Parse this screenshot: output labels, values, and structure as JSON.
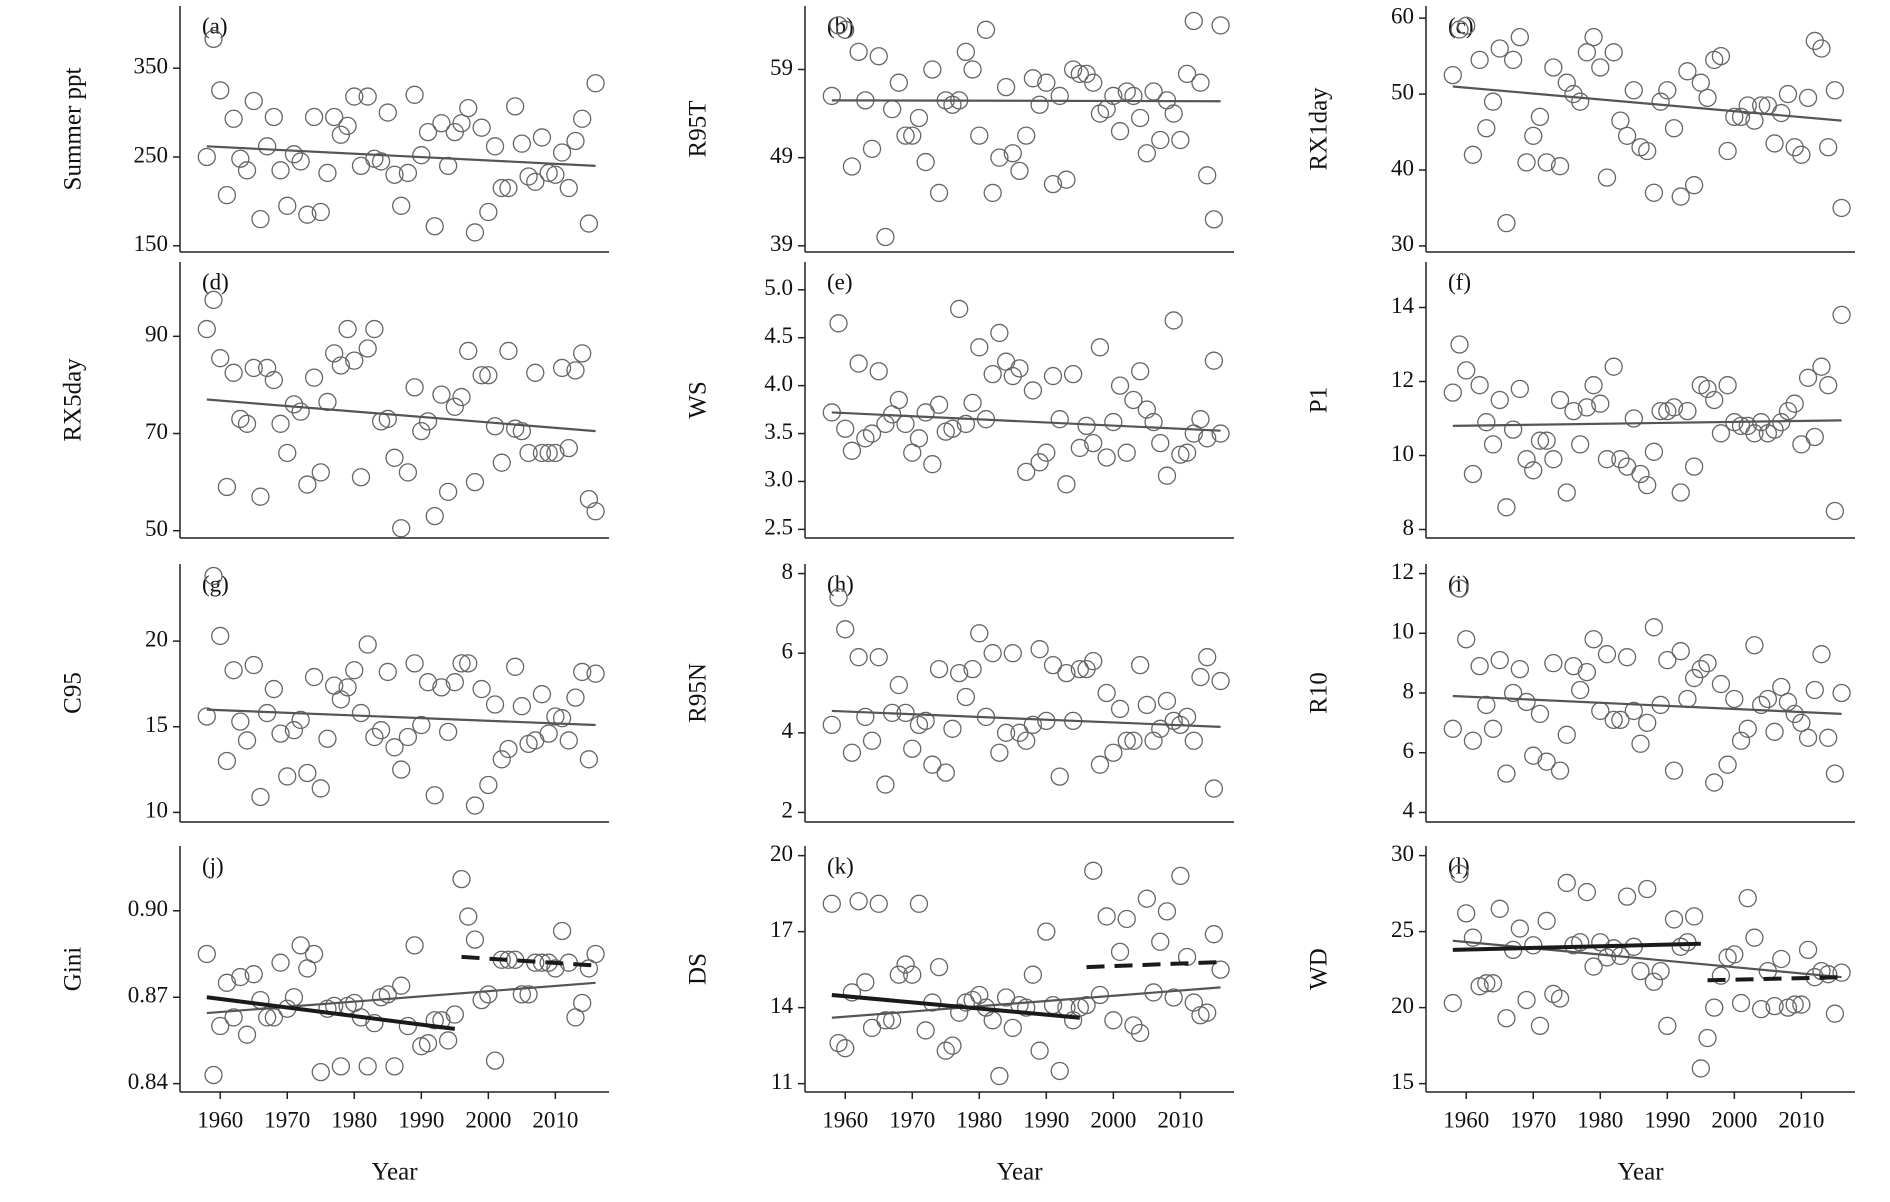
{
  "chart_data": {
    "type": "scatter",
    "xlabel": "Year",
    "x": [
      1958,
      1959,
      1960,
      1961,
      1962,
      1963,
      1964,
      1965,
      1966,
      1967,
      1968,
      1969,
      1970,
      1971,
      1972,
      1973,
      1974,
      1975,
      1976,
      1977,
      1978,
      1979,
      1980,
      1981,
      1982,
      1983,
      1984,
      1985,
      1986,
      1987,
      1988,
      1989,
      1990,
      1991,
      1992,
      1993,
      1994,
      1995,
      1996,
      1997,
      1998,
      1999,
      2000,
      2001,
      2002,
      2003,
      2004,
      2005,
      2006,
      2007,
      2008,
      2009,
      2010,
      2011,
      2012,
      2013,
      2014,
      2015,
      2016
    ],
    "xlim": [
      1954,
      2018
    ],
    "xticks": [
      1960,
      1970,
      1980,
      1990,
      2000,
      2010
    ],
    "panels": [
      {
        "label": "(a)",
        "ylabel": "Summer ppt",
        "ylim": [
          143,
          420
        ],
        "yticks": [
          150,
          250,
          350
        ],
        "values": [
          250,
          383,
          325,
          207,
          293,
          248,
          235,
          313,
          180,
          262,
          295,
          235,
          195,
          253,
          245,
          185,
          295,
          188,
          232,
          295,
          275,
          285,
          318,
          240,
          318,
          248,
          245,
          300,
          230,
          195,
          232,
          320,
          252,
          278,
          172,
          288,
          240,
          278,
          288,
          305,
          165,
          283,
          188,
          262,
          215,
          215,
          307,
          265,
          228,
          222,
          272,
          232,
          230,
          255,
          215,
          268,
          293,
          175,
          333
        ],
        "trends": [
          {
            "x": [
              1958,
              2016
            ],
            "values": [
              262,
              240
            ],
            "style": "thin"
          }
        ]
      },
      {
        "label": "(b)",
        "ylabel": "R95T",
        "ylim": [
          38.3,
          66.2
        ],
        "yticks": [
          39,
          49,
          59
        ],
        "values": [
          56,
          64,
          63.5,
          48,
          61,
          55.5,
          50,
          60.5,
          40,
          54.5,
          57.5,
          51.5,
          51.5,
          53.5,
          48.5,
          59,
          45,
          55.5,
          55,
          55.5,
          61,
          59,
          51.5,
          63.5,
          45,
          49,
          57,
          49.5,
          47.5,
          51.5,
          58,
          55,
          57.5,
          46,
          56,
          46.5,
          59,
          58.5,
          58.5,
          57.5,
          54,
          54.5,
          56,
          52,
          56.5,
          56,
          53.5,
          49.5,
          56.5,
          51,
          55.5,
          54,
          51,
          58.5,
          64.5,
          57.5,
          47,
          42,
          64
        ],
        "trends": [
          {
            "x": [
              1958,
              2016
            ],
            "values": [
              55.5,
              55.4
            ],
            "style": "thin"
          }
        ]
      },
      {
        "label": "(c)",
        "ylabel": "RX1day",
        "ylim": [
          29.2,
          61.6
        ],
        "yticks": [
          30,
          40,
          50,
          60
        ],
        "values": [
          52.5,
          58.5,
          59,
          42,
          54.5,
          45.5,
          49,
          56,
          33,
          54.5,
          57.5,
          41,
          44.5,
          47,
          41,
          53.5,
          40.5,
          51.5,
          50,
          49,
          55.5,
          57.5,
          53.5,
          39,
          55.5,
          46.5,
          44.5,
          50.5,
          43,
          42.5,
          37,
          49,
          50.5,
          45.5,
          36.5,
          53,
          38,
          51.5,
          49.5,
          54.5,
          55,
          42.5,
          47,
          47,
          48.5,
          46.5,
          48.5,
          48.5,
          43.5,
          47.5,
          50,
          43,
          42,
          49.5,
          57,
          56,
          43,
          50.5,
          35
        ],
        "trends": [
          {
            "x": [
              1958,
              2016
            ],
            "values": [
              51,
              46.5
            ],
            "style": "thin"
          }
        ]
      },
      {
        "label": "(d)",
        "ylabel": "RX5day",
        "ylim": [
          48.5,
          105.3
        ],
        "yticks": [
          50,
          70,
          90
        ],
        "values": [
          91.5,
          97.5,
          85.5,
          59,
          82.5,
          73,
          72,
          83.5,
          57,
          83.5,
          81,
          72,
          66,
          76,
          74.5,
          59.5,
          81.5,
          62,
          76.5,
          86.5,
          84,
          91.5,
          85,
          61,
          87.5,
          91.5,
          72.5,
          73,
          65,
          50.5,
          62,
          79.5,
          70.5,
          72.5,
          53,
          78,
          58,
          75.5,
          77.5,
          87,
          60,
          82,
          82,
          71.5,
          64,
          87,
          71,
          70.5,
          66,
          82.5,
          66,
          66,
          66,
          83.5,
          67,
          83,
          86.5,
          56.5,
          54
        ],
        "trends": [
          {
            "x": [
              1958,
              2016
            ],
            "values": [
              77,
              70.5
            ],
            "style": "thin"
          }
        ]
      },
      {
        "label": "(e)",
        "ylabel": "WS",
        "ylim": [
          2.41,
          5.29
        ],
        "yticks": [
          2.5,
          {
            "value": 3,
            "label": "3.0"
          },
          3.5,
          {
            "value": 4,
            "label": "4.0"
          },
          4.5,
          {
            "value": 5,
            "label": "5.0"
          }
        ],
        "values": [
          3.72,
          4.65,
          3.55,
          3.32,
          4.23,
          3.45,
          3.5,
          4.15,
          3.6,
          3.7,
          3.85,
          3.6,
          3.3,
          3.45,
          3.72,
          3.18,
          3.8,
          3.52,
          3.55,
          4.8,
          3.6,
          3.82,
          4.4,
          3.65,
          4.12,
          4.55,
          4.25,
          4.1,
          4.18,
          3.1,
          3.95,
          3.2,
          3.3,
          4.1,
          3.65,
          2.97,
          4.12,
          3.35,
          3.58,
          3.4,
          4.4,
          3.25,
          3.62,
          4.0,
          3.3,
          3.85,
          4.15,
          3.75,
          3.62,
          3.4,
          3.06,
          4.68,
          3.28,
          3.3,
          3.5,
          3.65,
          3.45,
          4.26,
          3.5
        ],
        "trends": [
          {
            "x": [
              1958,
              2016
            ],
            "values": [
              3.72,
              3.53
            ],
            "style": "thin"
          }
        ]
      },
      {
        "label": "(f)",
        "ylabel": "P1",
        "ylim": [
          7.77,
          15.23
        ],
        "yticks": [
          8,
          10,
          12,
          14
        ],
        "values": [
          11.7,
          13,
          12.3,
          9.5,
          11.9,
          10.9,
          10.3,
          11.5,
          8.6,
          10.7,
          11.8,
          9.9,
          9.6,
          10.4,
          10.4,
          9.9,
          11.5,
          9.0,
          11.2,
          10.3,
          11.3,
          11.9,
          11.4,
          9.9,
          12.4,
          9.9,
          9.7,
          11.0,
          9.5,
          9.2,
          10.1,
          11.2,
          11.2,
          11.3,
          9.0,
          11.2,
          9.7,
          11.9,
          11.8,
          11.5,
          10.6,
          11.9,
          10.9,
          10.8,
          10.8,
          10.6,
          10.9,
          10.6,
          10.7,
          10.9,
          11.2,
          11.4,
          10.3,
          12.1,
          10.5,
          12.4,
          11.9,
          8.5,
          13.8
        ],
        "trends": [
          {
            "x": [
              1958,
              2016
            ],
            "values": [
              10.8,
              10.95
            ],
            "style": "thin"
          }
        ]
      },
      {
        "label": "(g)",
        "ylabel": "C95",
        "ylim": [
          9.44,
          24.5
        ],
        "yticks": [
          10,
          15,
          20
        ],
        "values": [
          15.6,
          23.8,
          20.3,
          13,
          18.3,
          15.3,
          14.2,
          18.6,
          10.9,
          15.8,
          17.2,
          14.6,
          12.1,
          14.8,
          15.4,
          12.3,
          17.9,
          11.4,
          14.3,
          17.4,
          16.6,
          17.3,
          18.3,
          15.8,
          19.8,
          14.4,
          14.8,
          18.2,
          13.8,
          12.5,
          14.4,
          18.7,
          15.1,
          17.6,
          11.0,
          17.3,
          14.7,
          17.6,
          18.7,
          18.7,
          10.4,
          17.2,
          11.6,
          16.3,
          13.1,
          13.7,
          18.5,
          16.2,
          14.0,
          14.2,
          16.9,
          14.6,
          15.6,
          15.5,
          14.2,
          16.7,
          18.2,
          13.1,
          18.1
        ],
        "trends": [
          {
            "x": [
              1958,
              2016
            ],
            "values": [
              16,
              15.1
            ],
            "style": "thin"
          }
        ]
      },
      {
        "label": "(h)",
        "ylabel": "R95N",
        "ylim": [
          1.76,
          8.24
        ],
        "yticks": [
          2,
          4,
          6,
          8
        ],
        "values": [
          4.2,
          7.4,
          6.6,
          3.5,
          5.9,
          4.4,
          3.8,
          5.9,
          2.7,
          4.5,
          5.2,
          4.5,
          3.6,
          4.2,
          4.3,
          3.2,
          5.6,
          3.0,
          4.1,
          5.5,
          4.9,
          5.6,
          6.5,
          4.4,
          6.0,
          3.5,
          4.0,
          6.0,
          4.0,
          3.8,
          4.2,
          6.1,
          4.3,
          5.7,
          2.9,
          5.5,
          4.3,
          5.6,
          5.6,
          5.8,
          3.2,
          5.0,
          3.5,
          4.6,
          3.8,
          3.8,
          5.7,
          4.7,
          3.8,
          4.1,
          4.8,
          4.3,
          4.2,
          4.4,
          3.8,
          5.4,
          5.9,
          2.6,
          5.3
        ],
        "trends": [
          {
            "x": [
              1958,
              2016
            ],
            "values": [
              4.55,
              4.15
            ],
            "style": "thin"
          }
        ]
      },
      {
        "label": "(i)",
        "ylabel": "R10",
        "ylim": [
          3.68,
          12.32
        ],
        "yticks": [
          4,
          6,
          8,
          10,
          12
        ],
        "values": [
          6.8,
          11.5,
          9.8,
          6.4,
          8.9,
          7.6,
          6.8,
          9.1,
          5.3,
          8.0,
          8.8,
          7.7,
          5.9,
          7.3,
          5.7,
          9.0,
          5.4,
          6.6,
          8.9,
          8.1,
          8.7,
          9.8,
          7.4,
          9.3,
          7.1,
          7.1,
          9.2,
          7.4,
          6.3,
          7.0,
          10.2,
          7.6,
          9.1,
          5.4,
          9.4,
          7.8,
          8.5,
          8.8,
          9.0,
          5.0,
          8.3,
          5.6,
          7.8,
          6.4,
          6.8,
          9.6,
          7.6,
          7.8,
          6.7,
          8.2,
          7.7,
          7.3,
          7.0,
          6.5,
          8.1,
          9.3,
          6.5,
          5.3,
          8.0
        ],
        "trends": [
          {
            "x": [
              1958,
              2016
            ],
            "values": [
              7.9,
              7.3
            ],
            "style": "thin"
          }
        ]
      },
      {
        "label": "(j)",
        "ylabel": "Gini",
        "ylim": [
          0.8371,
          0.9225
        ],
        "yticks": [
          0.84,
          0.87,
          {
            "value": 0.9,
            "label": "0.90"
          }
        ],
        "values": [
          0.885,
          0.843,
          0.86,
          0.875,
          0.863,
          0.877,
          0.857,
          0.878,
          0.869,
          0.863,
          0.863,
          0.882,
          0.866,
          0.87,
          0.888,
          0.88,
          0.885,
          0.844,
          0.866,
          0.867,
          0.846,
          0.867,
          0.868,
          0.863,
          0.846,
          0.861,
          0.87,
          0.871,
          0.846,
          0.874,
          0.86,
          0.888,
          0.853,
          0.854,
          0.862,
          0.862,
          0.855,
          0.864,
          0.911,
          0.898,
          0.89,
          0.869,
          0.871,
          0.848,
          0.883,
          0.883,
          0.883,
          0.871,
          0.871,
          0.882,
          0.882,
          0.882,
          0.88,
          0.893,
          0.882,
          0.863,
          0.868,
          0.88,
          0.885
        ],
        "trends": [
          {
            "x": [
              1958,
              2016
            ],
            "values": [
              0.8645,
              0.875
            ],
            "style": "thin"
          },
          {
            "x": [
              1958,
              1995
            ],
            "values": [
              0.87,
              0.859
            ],
            "style": "thick"
          },
          {
            "x": [
              1996,
              2016
            ],
            "values": [
              0.884,
              0.881
            ],
            "style": "dashed"
          }
        ]
      },
      {
        "label": "(k)",
        "ylabel": "DS",
        "ylim": [
          10.67,
          20.38
        ],
        "yticks": [
          11,
          14,
          17,
          20
        ],
        "values": [
          18.1,
          12.6,
          12.4,
          14.6,
          18.2,
          15.0,
          13.2,
          18.1,
          13.5,
          13.5,
          15.3,
          15.7,
          15.3,
          18.1,
          13.1,
          14.2,
          15.6,
          12.3,
          12.5,
          13.8,
          14.2,
          14.3,
          14.5,
          14.0,
          13.5,
          11.3,
          14.4,
          13.2,
          14.1,
          14.0,
          15.3,
          12.3,
          17.0,
          14.1,
          11.5,
          14.0,
          13.5,
          14.0,
          14.1,
          19.4,
          14.5,
          17.6,
          13.5,
          16.2,
          17.5,
          13.3,
          13.0,
          18.3,
          14.6,
          16.6,
          17.8,
          14.4,
          19.2,
          16.0,
          14.2,
          13.7,
          13.8,
          16.9,
          15.5
        ],
        "trends": [
          {
            "x": [
              1958,
              2016
            ],
            "values": [
              13.6,
              14.8
            ],
            "style": "thin"
          },
          {
            "x": [
              1958,
              1995
            ],
            "values": [
              14.5,
              13.6
            ],
            "style": "thick"
          },
          {
            "x": [
              1996,
              2016
            ],
            "values": [
              15.6,
              15.8
            ],
            "style": "dashed"
          }
        ]
      },
      {
        "label": "(l)",
        "ylabel": "WD",
        "ylim": [
          14.45,
          30.63
        ],
        "yticks": [
          15,
          20,
          25,
          30
        ],
        "values": [
          20.3,
          28.8,
          26.2,
          24.6,
          21.4,
          21.6,
          21.6,
          26.5,
          19.3,
          23.8,
          25.2,
          20.5,
          24.1,
          18.8,
          25.7,
          20.9,
          20.6,
          28.2,
          24.1,
          24.3,
          27.6,
          22.7,
          24.3,
          23.3,
          23.9,
          23.4,
          27.3,
          24.0,
          22.4,
          27.8,
          21.7,
          22.4,
          18.8,
          25.8,
          24.0,
          24.3,
          26.0,
          16.0,
          18.0,
          20.0,
          22.1,
          23.3,
          23.5,
          20.3,
          27.2,
          24.6,
          19.9,
          22.4,
          20.1,
          23.2,
          20.0,
          20.2,
          20.2,
          23.8,
          22.0,
          22.4,
          22.2,
          19.6,
          22.3
        ],
        "trends": [
          {
            "x": [
              1958,
              2016
            ],
            "values": [
              24.4,
              22.0
            ],
            "style": "thin"
          },
          {
            "x": [
              1958,
              1995
            ],
            "values": [
              23.8,
              24.2
            ],
            "style": "thick"
          },
          {
            "x": [
              1996,
              2016
            ],
            "values": [
              21.8,
              22.0
            ],
            "style": "dashed"
          }
        ]
      }
    ]
  }
}
